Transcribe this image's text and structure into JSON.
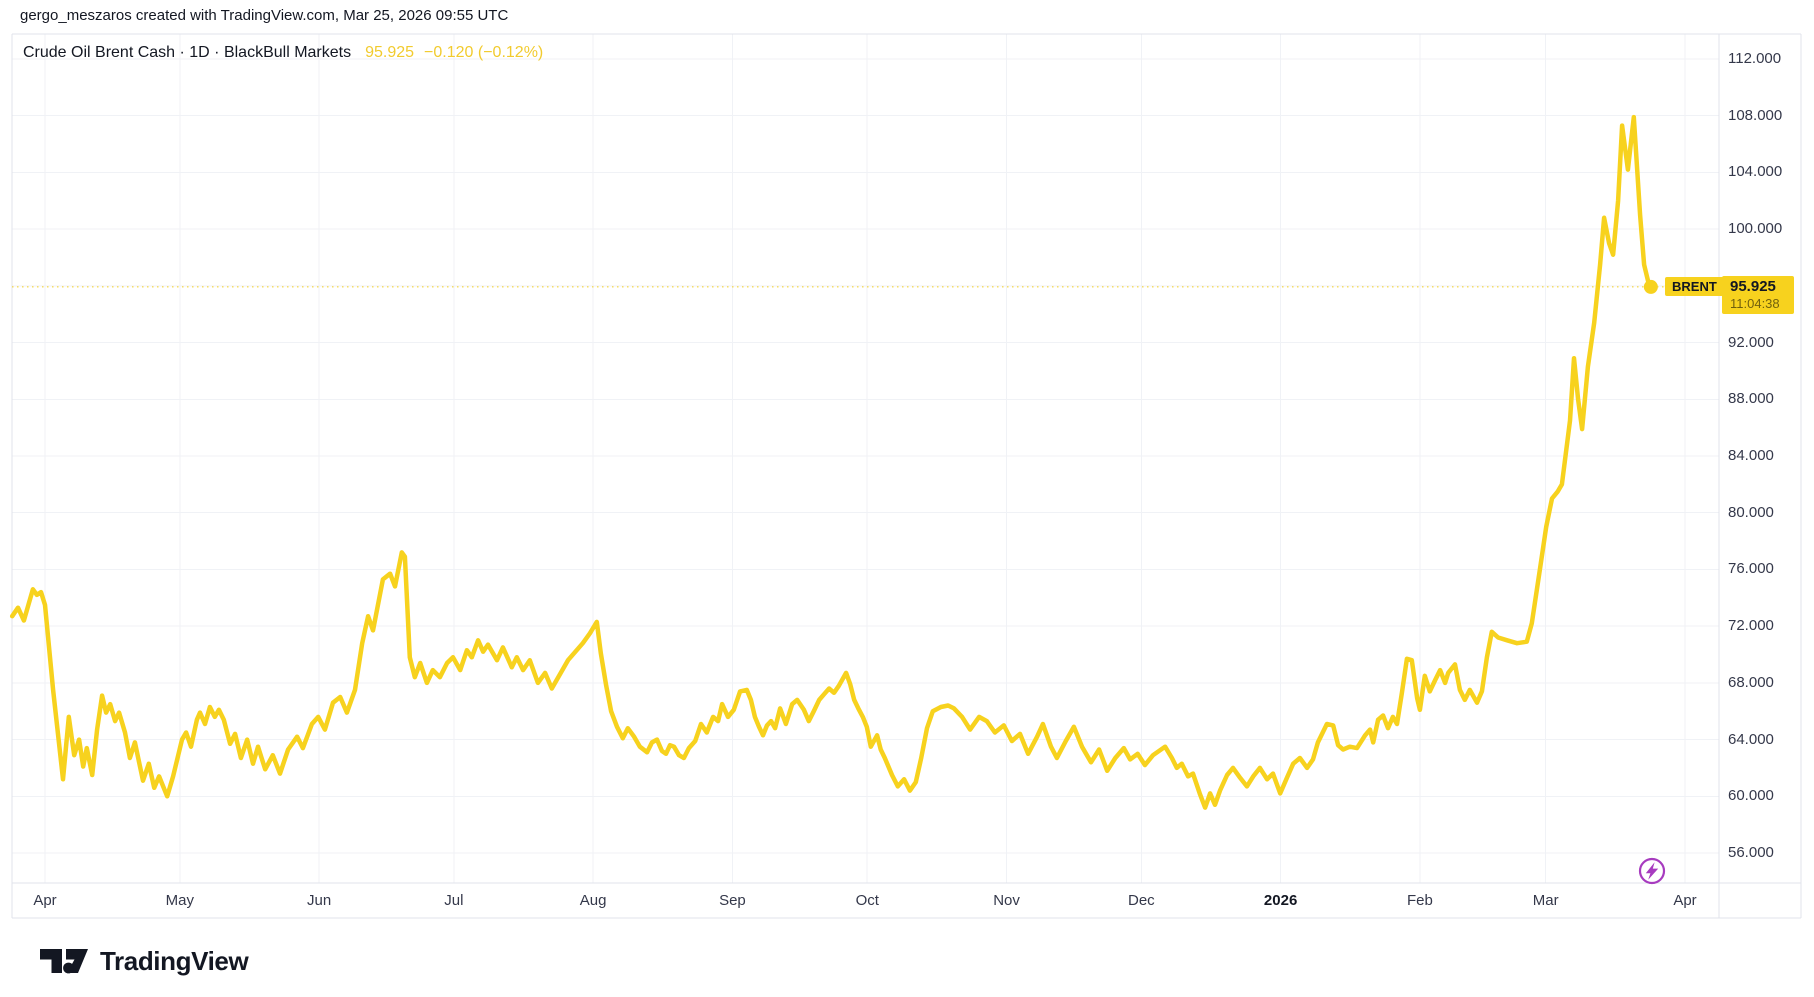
{
  "attribution": "gergo_meszaros created with TradingView.com, Mar 25, 2026 09:55 UTC",
  "legend": {
    "title": "Crude Oil Brent Cash · 1D · BlackBull Markets",
    "last_price": "95.925",
    "change": "−0.120 (−0.12%)"
  },
  "price_label": {
    "symbol": "BRENT",
    "price": "95.925",
    "countdown": "11:04:38",
    "value": 95.925,
    "t": 357.4
  },
  "logo_text": "TradingView",
  "colors": {
    "accent_yellow": "#f7d21e",
    "text_dark": "#131722",
    "axis_text": "#34384a",
    "grid": "#f0f2f6",
    "border": "#e0e3eb",
    "marker_purple": "#a73bbf"
  },
  "chart_data": {
    "type": "line",
    "title": "Crude Oil Brent Cash, 1D, BlackBull Markets",
    "legend_position": "top-left",
    "grid": true,
    "x_axis": {
      "unit": "days since 2025-04-01",
      "range_days": [
        -7.5,
        392
      ],
      "ticks": [
        {
          "label": "Apr",
          "day": 0
        },
        {
          "label": "May",
          "day": 30
        },
        {
          "label": "Jun",
          "day": 61
        },
        {
          "label": "Jul",
          "day": 91
        },
        {
          "label": "Aug",
          "day": 122
        },
        {
          "label": "Sep",
          "day": 153
        },
        {
          "label": "Oct",
          "day": 183
        },
        {
          "label": "Nov",
          "day": 214
        },
        {
          "label": "Dec",
          "day": 244
        },
        {
          "label": "2026",
          "day": 275,
          "bold": true
        },
        {
          "label": "Feb",
          "day": 306
        },
        {
          "label": "Mar",
          "day": 334
        },
        {
          "label": "Apr",
          "day": 365
        }
      ]
    },
    "y_axis": {
      "range": [
        53.9,
        113.8
      ],
      "gridline_values": [
        56,
        60,
        64,
        68,
        72,
        76,
        80,
        84,
        88,
        92,
        96,
        100,
        104,
        108,
        112
      ],
      "label_values": [
        112,
        108,
        104,
        100,
        92,
        88,
        84,
        80,
        76,
        72,
        68,
        64,
        60,
        56
      ],
      "label_format": "3dp"
    },
    "last": {
      "value": 95.925,
      "time": "11:04:38"
    },
    "series": [
      {
        "name": "BRENT",
        "color": "#f7d21e",
        "points": [
          [
            -7.3,
            72.7
          ],
          [
            -6,
            73.3
          ],
          [
            -4.7,
            72.4
          ],
          [
            -2.7,
            74.6
          ],
          [
            -1.8,
            74.2
          ],
          [
            -0.9,
            74.4
          ],
          [
            0,
            73.5
          ],
          [
            1.8,
            67.5
          ],
          [
            4,
            61.2
          ],
          [
            5.3,
            65.6
          ],
          [
            6.5,
            62.9
          ],
          [
            7.6,
            64
          ],
          [
            8.5,
            62.1
          ],
          [
            9.3,
            63.4
          ],
          [
            10.5,
            61.5
          ],
          [
            11.6,
            64.7
          ],
          [
            12.7,
            67.1
          ],
          [
            13.6,
            65.9
          ],
          [
            14.5,
            66.5
          ],
          [
            15.6,
            65.3
          ],
          [
            16.5,
            65.9
          ],
          [
            17.8,
            64.5
          ],
          [
            18.9,
            62.7
          ],
          [
            20,
            63.8
          ],
          [
            21.8,
            61.1
          ],
          [
            23.1,
            62.3
          ],
          [
            24.3,
            60.6
          ],
          [
            25.4,
            61.4
          ],
          [
            27.2,
            60
          ],
          [
            28.5,
            61.4
          ],
          [
            30.5,
            64
          ],
          [
            31.4,
            64.5
          ],
          [
            32.5,
            63.5
          ],
          [
            33.8,
            65.4
          ],
          [
            34.5,
            65.9
          ],
          [
            35.6,
            65.1
          ],
          [
            36.7,
            66.3
          ],
          [
            37.8,
            65.6
          ],
          [
            38.7,
            66.1
          ],
          [
            39.8,
            65.4
          ],
          [
            41.2,
            63.7
          ],
          [
            42.3,
            64.4
          ],
          [
            43.6,
            62.7
          ],
          [
            45,
            64
          ],
          [
            46.3,
            62.3
          ],
          [
            47.4,
            63.5
          ],
          [
            49,
            61.9
          ],
          [
            50.7,
            62.9
          ],
          [
            52.3,
            61.6
          ],
          [
            54.1,
            63.3
          ],
          [
            56.1,
            64.2
          ],
          [
            57.4,
            63.4
          ],
          [
            59.4,
            65.1
          ],
          [
            60.8,
            65.6
          ],
          [
            62.3,
            64.7
          ],
          [
            64.1,
            66.6
          ],
          [
            65.7,
            67
          ],
          [
            67.2,
            65.9
          ],
          [
            69,
            67.5
          ],
          [
            70.6,
            70.8
          ],
          [
            71.9,
            72.7
          ],
          [
            73,
            71.7
          ],
          [
            75.2,
            75.3
          ],
          [
            76.8,
            75.7
          ],
          [
            77.9,
            74.8
          ],
          [
            79.4,
            77.2
          ],
          [
            80.1,
            76.9
          ],
          [
            81.2,
            69.8
          ],
          [
            82.3,
            68.4
          ],
          [
            83.5,
            69.4
          ],
          [
            85,
            68
          ],
          [
            86.3,
            68.9
          ],
          [
            87.9,
            68.4
          ],
          [
            89.5,
            69.4
          ],
          [
            90.8,
            69.8
          ],
          [
            92.4,
            68.9
          ],
          [
            93.9,
            70.3
          ],
          [
            95,
            69.8
          ],
          [
            96.4,
            71
          ],
          [
            97.5,
            70.2
          ],
          [
            98.6,
            70.7
          ],
          [
            100.6,
            69.6
          ],
          [
            101.9,
            70.5
          ],
          [
            103.9,
            69.1
          ],
          [
            105,
            69.8
          ],
          [
            106.4,
            68.9
          ],
          [
            107.9,
            69.6
          ],
          [
            109.7,
            68
          ],
          [
            111.3,
            68.7
          ],
          [
            112.8,
            67.6
          ],
          [
            114.6,
            68.6
          ],
          [
            116.4,
            69.6
          ],
          [
            119.7,
            70.8
          ],
          [
            121.3,
            71.5
          ],
          [
            122.8,
            72.3
          ],
          [
            123.7,
            70.1
          ],
          [
            124.9,
            67.8
          ],
          [
            126,
            66
          ],
          [
            127.3,
            64.9
          ],
          [
            128.6,
            64.1
          ],
          [
            129.7,
            64.8
          ],
          [
            131.1,
            64.2
          ],
          [
            132.4,
            63.5
          ],
          [
            134,
            63.1
          ],
          [
            135.1,
            63.8
          ],
          [
            136.2,
            64
          ],
          [
            137.3,
            63.2
          ],
          [
            138.2,
            63
          ],
          [
            139.1,
            63.6
          ],
          [
            140,
            63.5
          ],
          [
            141.1,
            62.9
          ],
          [
            142.2,
            62.7
          ],
          [
            143.3,
            63.4
          ],
          [
            144.7,
            63.9
          ],
          [
            146,
            65.1
          ],
          [
            147.3,
            64.5
          ],
          [
            148.7,
            65.6
          ],
          [
            149.8,
            65.3
          ],
          [
            150.7,
            66.5
          ],
          [
            152,
            65.6
          ],
          [
            153.3,
            66.1
          ],
          [
            154.7,
            67.4
          ],
          [
            156.2,
            67.5
          ],
          [
            157.1,
            66.8
          ],
          [
            158,
            65.6
          ],
          [
            158.9,
            64.9
          ],
          [
            159.8,
            64.3
          ],
          [
            160.7,
            65
          ],
          [
            161.6,
            65.3
          ],
          [
            162.5,
            64.8
          ],
          [
            163.6,
            66.2
          ],
          [
            164.9,
            65.1
          ],
          [
            166.3,
            66.5
          ],
          [
            167.4,
            66.8
          ],
          [
            168.9,
            66.1
          ],
          [
            170,
            65.3
          ],
          [
            171.1,
            66
          ],
          [
            172.3,
            66.8
          ],
          [
            173.4,
            67.2
          ],
          [
            174.5,
            67.6
          ],
          [
            175.6,
            67.3
          ],
          [
            176.7,
            67.8
          ],
          [
            178.3,
            68.7
          ],
          [
            179.2,
            67.9
          ],
          [
            180.1,
            66.8
          ],
          [
            181,
            66.2
          ],
          [
            182,
            65.6
          ],
          [
            182.9,
            64.9
          ],
          [
            183.8,
            63.5
          ],
          [
            185.2,
            64.3
          ],
          [
            186,
            63.3
          ],
          [
            186.9,
            62.7
          ],
          [
            188.5,
            61.5
          ],
          [
            189.8,
            60.7
          ],
          [
            191.2,
            61.2
          ],
          [
            192.5,
            60.4
          ],
          [
            193.8,
            61
          ],
          [
            195,
            62.7
          ],
          [
            196.3,
            64.8
          ],
          [
            197.6,
            66
          ],
          [
            199.4,
            66.3
          ],
          [
            201,
            66.4
          ],
          [
            202.3,
            66.2
          ],
          [
            204.1,
            65.6
          ],
          [
            205.9,
            64.7
          ],
          [
            207.9,
            65.6
          ],
          [
            209.6,
            65.3
          ],
          [
            211.4,
            64.5
          ],
          [
            213.4,
            65
          ],
          [
            215.2,
            63.9
          ],
          [
            217,
            64.4
          ],
          [
            218.8,
            63
          ],
          [
            220.8,
            64.2
          ],
          [
            222.1,
            65.1
          ],
          [
            223.9,
            63.5
          ],
          [
            225.2,
            62.7
          ],
          [
            227.2,
            63.9
          ],
          [
            229,
            64.9
          ],
          [
            230.8,
            63.5
          ],
          [
            232.8,
            62.4
          ],
          [
            234.6,
            63.3
          ],
          [
            236.4,
            61.8
          ],
          [
            238.2,
            62.7
          ],
          [
            240.1,
            63.4
          ],
          [
            241.5,
            62.6
          ],
          [
            243.2,
            63
          ],
          [
            244.8,
            62.2
          ],
          [
            246.6,
            62.9
          ],
          [
            249.3,
            63.5
          ],
          [
            250.8,
            62.7
          ],
          [
            251.9,
            62
          ],
          [
            253,
            62.3
          ],
          [
            254.4,
            61.4
          ],
          [
            255.5,
            61.6
          ],
          [
            257,
            60.2
          ],
          [
            258.2,
            59.2
          ],
          [
            259.3,
            60.2
          ],
          [
            260.4,
            59.4
          ],
          [
            261.5,
            60.4
          ],
          [
            263.1,
            61.5
          ],
          [
            264.4,
            62
          ],
          [
            266,
            61.3
          ],
          [
            267.5,
            60.7
          ],
          [
            268.9,
            61.4
          ],
          [
            270.4,
            62
          ],
          [
            272,
            61.2
          ],
          [
            273.3,
            61.6
          ],
          [
            274.9,
            60.2
          ],
          [
            276.4,
            61.3
          ],
          [
            277.8,
            62.3
          ],
          [
            279.3,
            62.7
          ],
          [
            280.9,
            62
          ],
          [
            282.2,
            62.6
          ],
          [
            283.3,
            63.8
          ],
          [
            285.3,
            65.1
          ],
          [
            286.7,
            65
          ],
          [
            287.8,
            63.6
          ],
          [
            288.9,
            63.3
          ],
          [
            290.4,
            63.5
          ],
          [
            292,
            63.4
          ],
          [
            293.8,
            64.3
          ],
          [
            294.9,
            64.7
          ],
          [
            295.6,
            63.8
          ],
          [
            296.7,
            65.4
          ],
          [
            297.8,
            65.7
          ],
          [
            298.9,
            64.8
          ],
          [
            300,
            65.6
          ],
          [
            300.9,
            65.1
          ],
          [
            302,
            67.3
          ],
          [
            303.1,
            69.7
          ],
          [
            304.2,
            69.6
          ],
          [
            305.4,
            66.9
          ],
          [
            306,
            66.1
          ],
          [
            307.1,
            68.5
          ],
          [
            308.2,
            67.4
          ],
          [
            309.4,
            68.2
          ],
          [
            310.5,
            68.9
          ],
          [
            311.6,
            68
          ],
          [
            312.3,
            68.7
          ],
          [
            313.8,
            69.3
          ],
          [
            314.9,
            67.5
          ],
          [
            316,
            66.8
          ],
          [
            317.1,
            67.5
          ],
          [
            318.7,
            66.6
          ],
          [
            319.8,
            67.4
          ],
          [
            320.9,
            69.8
          ],
          [
            322,
            71.6
          ],
          [
            323.4,
            71.2
          ],
          [
            325.4,
            71
          ],
          [
            327.6,
            70.8
          ],
          [
            329.8,
            70.9
          ],
          [
            330.9,
            72.2
          ],
          [
            332.7,
            76
          ],
          [
            334.1,
            79
          ],
          [
            335.4,
            81
          ],
          [
            336.7,
            81.5
          ],
          [
            337.6,
            82
          ],
          [
            339.4,
            86.5
          ],
          [
            340.3,
            90.9
          ],
          [
            341.2,
            88
          ],
          [
            342.1,
            85.9
          ],
          [
            343.4,
            90.3
          ],
          [
            344.8,
            93.4
          ],
          [
            346.1,
            97.5
          ],
          [
            347,
            100.8
          ],
          [
            348.1,
            99
          ],
          [
            349,
            98.2
          ],
          [
            350.1,
            102
          ],
          [
            351,
            107.3
          ],
          [
            352.3,
            104.2
          ],
          [
            353.6,
            107.9
          ],
          [
            355,
            101
          ],
          [
            355.9,
            97.5
          ],
          [
            356.8,
            96.3
          ],
          [
            357.4,
            95.925
          ]
        ]
      }
    ]
  }
}
